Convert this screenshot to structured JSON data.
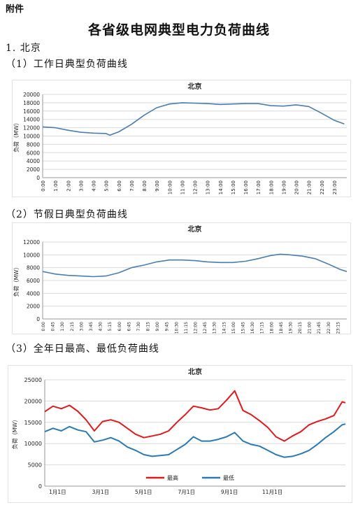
{
  "header": {
    "attachment_label": "附件",
    "title": "各省级电网典型电力负荷曲线",
    "section": "1. 北京",
    "sub1": "（1）工作日典型负荷曲线",
    "sub2": "（2）节假日典型负荷曲线",
    "sub3": "（3）全年日最高、最低负荷曲线"
  },
  "colors": {
    "line_blue": "#4a7eb0",
    "series_high": "#e31a1c",
    "series_low": "#2a7ab5",
    "grid": "#d9d9d9"
  },
  "chart_data": [
    {
      "type": "line",
      "title": "北京",
      "ylabel": "负荷（MW）",
      "ylim": [
        0,
        20000
      ],
      "yticks": [
        0,
        2000,
        4000,
        6000,
        8000,
        10000,
        12000,
        14000,
        16000,
        18000,
        20000
      ],
      "xticks": [
        "0:00",
        "1:00",
        "2:00",
        "3:00",
        "4:00",
        "5:00",
        "6:00",
        "7:00",
        "8:00",
        "9:00",
        "10:00",
        "11:00",
        "12:00",
        "13:00",
        "14:00",
        "15:00",
        "16:00",
        "17:00",
        "18:00",
        "19:00",
        "20:00",
        "21:00",
        "22:00",
        "23:00"
      ],
      "grid": true,
      "x": [
        0,
        1,
        2,
        3,
        4,
        5,
        5.3,
        6,
        7,
        8,
        9,
        10,
        11,
        12,
        13,
        14,
        15,
        16,
        17,
        18,
        19,
        20,
        21,
        22,
        23,
        23.8
      ],
      "y": [
        12200,
        12000,
        11400,
        10900,
        10700,
        10600,
        10200,
        11000,
        12800,
        15000,
        16800,
        17700,
        18000,
        17900,
        17800,
        17600,
        17700,
        17800,
        17800,
        17300,
        17200,
        17500,
        17100,
        15500,
        13800,
        12900
      ]
    },
    {
      "type": "line",
      "title": "北京",
      "ylabel": "负荷（MW）",
      "ylim": [
        0,
        12000
      ],
      "yticks": [
        0,
        2000,
        4000,
        6000,
        8000,
        10000,
        12000
      ],
      "xticks": [
        "0:00",
        "0:45",
        "1:30",
        "2:15",
        "3:00",
        "3:45",
        "4:30",
        "5:15",
        "6:00",
        "6:45",
        "7:30",
        "8:15",
        "9:00",
        "9:45",
        "10:30",
        "11:15",
        "12:00",
        "12:45",
        "13:30",
        "14:15",
        "15:00",
        "15:45",
        "16:30",
        "17:15",
        "18:00",
        "18:45",
        "19:30",
        "20:15",
        "21:00",
        "21:45",
        "22:30",
        "23:15"
      ],
      "grid": true,
      "x": [
        0,
        0.5,
        1,
        2,
        3,
        4,
        5,
        6,
        7,
        7.5,
        8,
        9,
        10,
        11,
        12,
        13,
        14,
        15,
        16,
        17,
        18,
        18.75,
        19.5,
        20.5,
        21.5,
        22.5,
        23.5,
        24
      ],
      "y": [
        7400,
        7200,
        7000,
        6800,
        6700,
        6600,
        6700,
        7200,
        8000,
        8200,
        8400,
        8900,
        9200,
        9200,
        9100,
        8900,
        8800,
        8800,
        9000,
        9400,
        9900,
        10100,
        10000,
        9800,
        9400,
        8600,
        7700,
        7400
      ]
    },
    {
      "type": "line",
      "title": "北京",
      "ylabel": "负荷（MW）",
      "ylim": [
        0,
        25000
      ],
      "yticks": [
        0,
        5000,
        10000,
        15000,
        20000,
        25000
      ],
      "xticks": [
        "1月1日",
        "3月1日",
        "5月1日",
        "7月1日",
        "9月1日",
        "11月1日"
      ],
      "grid": true,
      "legend": "bottom-center",
      "series": [
        {
          "name": "最高",
          "x": [
            0,
            10,
            20,
            30,
            40,
            50,
            60,
            70,
            80,
            90,
            100,
            110,
            120,
            130,
            140,
            150,
            160,
            170,
            180,
            190,
            200,
            210,
            220,
            230,
            240,
            250,
            260,
            270,
            280,
            290,
            300,
            310,
            320,
            330,
            340,
            350,
            360,
            364
          ],
          "y": [
            17500,
            18800,
            18200,
            19000,
            17600,
            15600,
            13000,
            15200,
            15600,
            15000,
            13600,
            12200,
            11400,
            11800,
            12200,
            13000,
            15000,
            16800,
            18800,
            18400,
            17900,
            18200,
            20200,
            22400,
            17800,
            16800,
            15400,
            13800,
            11600,
            10600,
            11800,
            12800,
            14400,
            15200,
            15800,
            16600,
            19800,
            19600
          ]
        },
        {
          "name": "最低",
          "x": [
            0,
            10,
            20,
            30,
            40,
            50,
            60,
            70,
            80,
            90,
            100,
            110,
            120,
            130,
            140,
            150,
            160,
            170,
            180,
            190,
            200,
            210,
            220,
            230,
            240,
            250,
            260,
            270,
            280,
            290,
            300,
            310,
            320,
            330,
            340,
            350,
            360,
            364
          ],
          "y": [
            12800,
            13600,
            13000,
            14000,
            13200,
            12800,
            10400,
            10800,
            11400,
            10600,
            9200,
            8400,
            7400,
            7000,
            7200,
            7400,
            8600,
            9800,
            11600,
            10600,
            10600,
            11000,
            11600,
            12600,
            10600,
            9800,
            9400,
            8400,
            7400,
            6800,
            7000,
            7600,
            8400,
            9800,
            11400,
            12800,
            14400,
            14600
          ]
        }
      ]
    }
  ]
}
